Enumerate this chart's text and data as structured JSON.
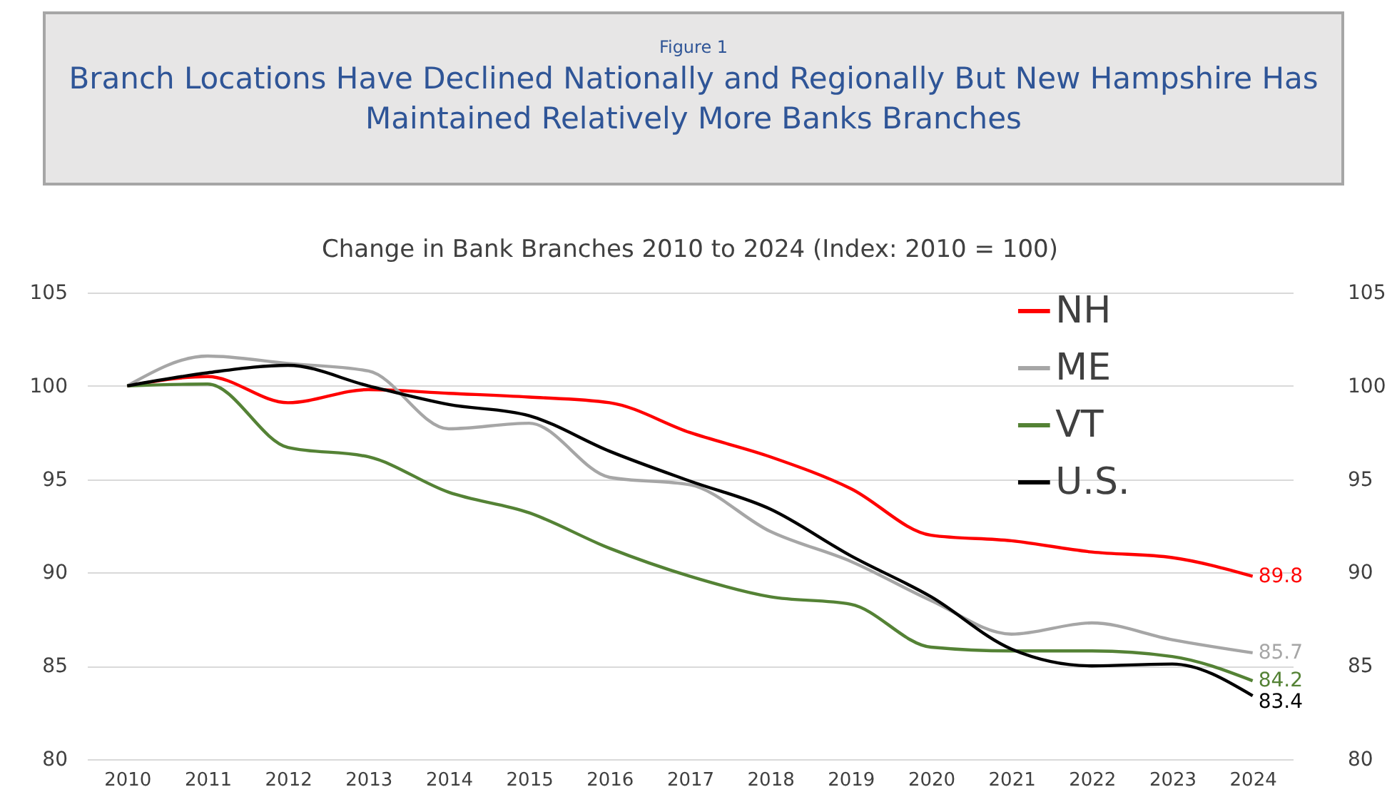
{
  "chart_data": {
    "type": "line",
    "title": "Branch Locations Have Declined Nationally and Regionally But New Hampshire Has Maintained Relatively More Banks Branches",
    "subtitle": "Change in Bank Branches 2010 to 2024 (Index: 2010 = 100)",
    "annotations": [
      "Figure 1"
    ],
    "categories": [
      "2010",
      "2011",
      "2012",
      "2013",
      "2014",
      "2015",
      "2016",
      "2017",
      "2018",
      "2019",
      "2020",
      "2021",
      "2022",
      "2023",
      "2024"
    ],
    "series": [
      {
        "name": "NH",
        "color": "#ff0000",
        "values": [
          100,
          100.5,
          99.1,
          99.8,
          99.6,
          99.4,
          99.1,
          97.5,
          96.2,
          94.5,
          92.0,
          91.7,
          91.1,
          90.8,
          89.8
        ],
        "value_labels": [
          null,
          null,
          null,
          null,
          null,
          null,
          null,
          null,
          null,
          null,
          null,
          null,
          null,
          null,
          "89.8"
        ]
      },
      {
        "name": "ME",
        "color": "#a6a6a6",
        "values": [
          100,
          101.6,
          101.2,
          100.8,
          97.7,
          98.0,
          95.1,
          94.7,
          92.2,
          90.6,
          88.5,
          86.7,
          87.3,
          86.4,
          85.7
        ],
        "value_labels": [
          null,
          null,
          null,
          null,
          null,
          null,
          null,
          null,
          null,
          null,
          null,
          null,
          null,
          null,
          "85.7"
        ]
      },
      {
        "name": "VT",
        "color": "#548235",
        "values": [
          100,
          100.1,
          96.7,
          96.2,
          94.3,
          93.2,
          91.3,
          89.8,
          88.7,
          88.3,
          86.0,
          85.8,
          85.8,
          85.5,
          84.2
        ],
        "value_labels": [
          null,
          null,
          null,
          null,
          null,
          null,
          null,
          null,
          null,
          null,
          null,
          null,
          null,
          null,
          "84.2"
        ]
      },
      {
        "name": "U.S.",
        "color": "#000000",
        "values": [
          100,
          100.7,
          101.1,
          100.0,
          99.0,
          98.4,
          96.5,
          94.9,
          93.4,
          90.9,
          88.7,
          85.9,
          85.0,
          85.1,
          83.4
        ],
        "value_labels": [
          null,
          null,
          null,
          null,
          null,
          null,
          null,
          null,
          null,
          null,
          null,
          null,
          null,
          null,
          "83.4"
        ]
      }
    ],
    "ylim": [
      80,
      105
    ],
    "yticks": [
      80,
      85,
      90,
      95,
      100,
      105
    ],
    "y2lim": [
      80,
      105
    ],
    "y2ticks": [
      80,
      85,
      90,
      95,
      100,
      105
    ],
    "grid": "y",
    "legend": "top right",
    "line_style": "solid",
    "marker": "none"
  }
}
